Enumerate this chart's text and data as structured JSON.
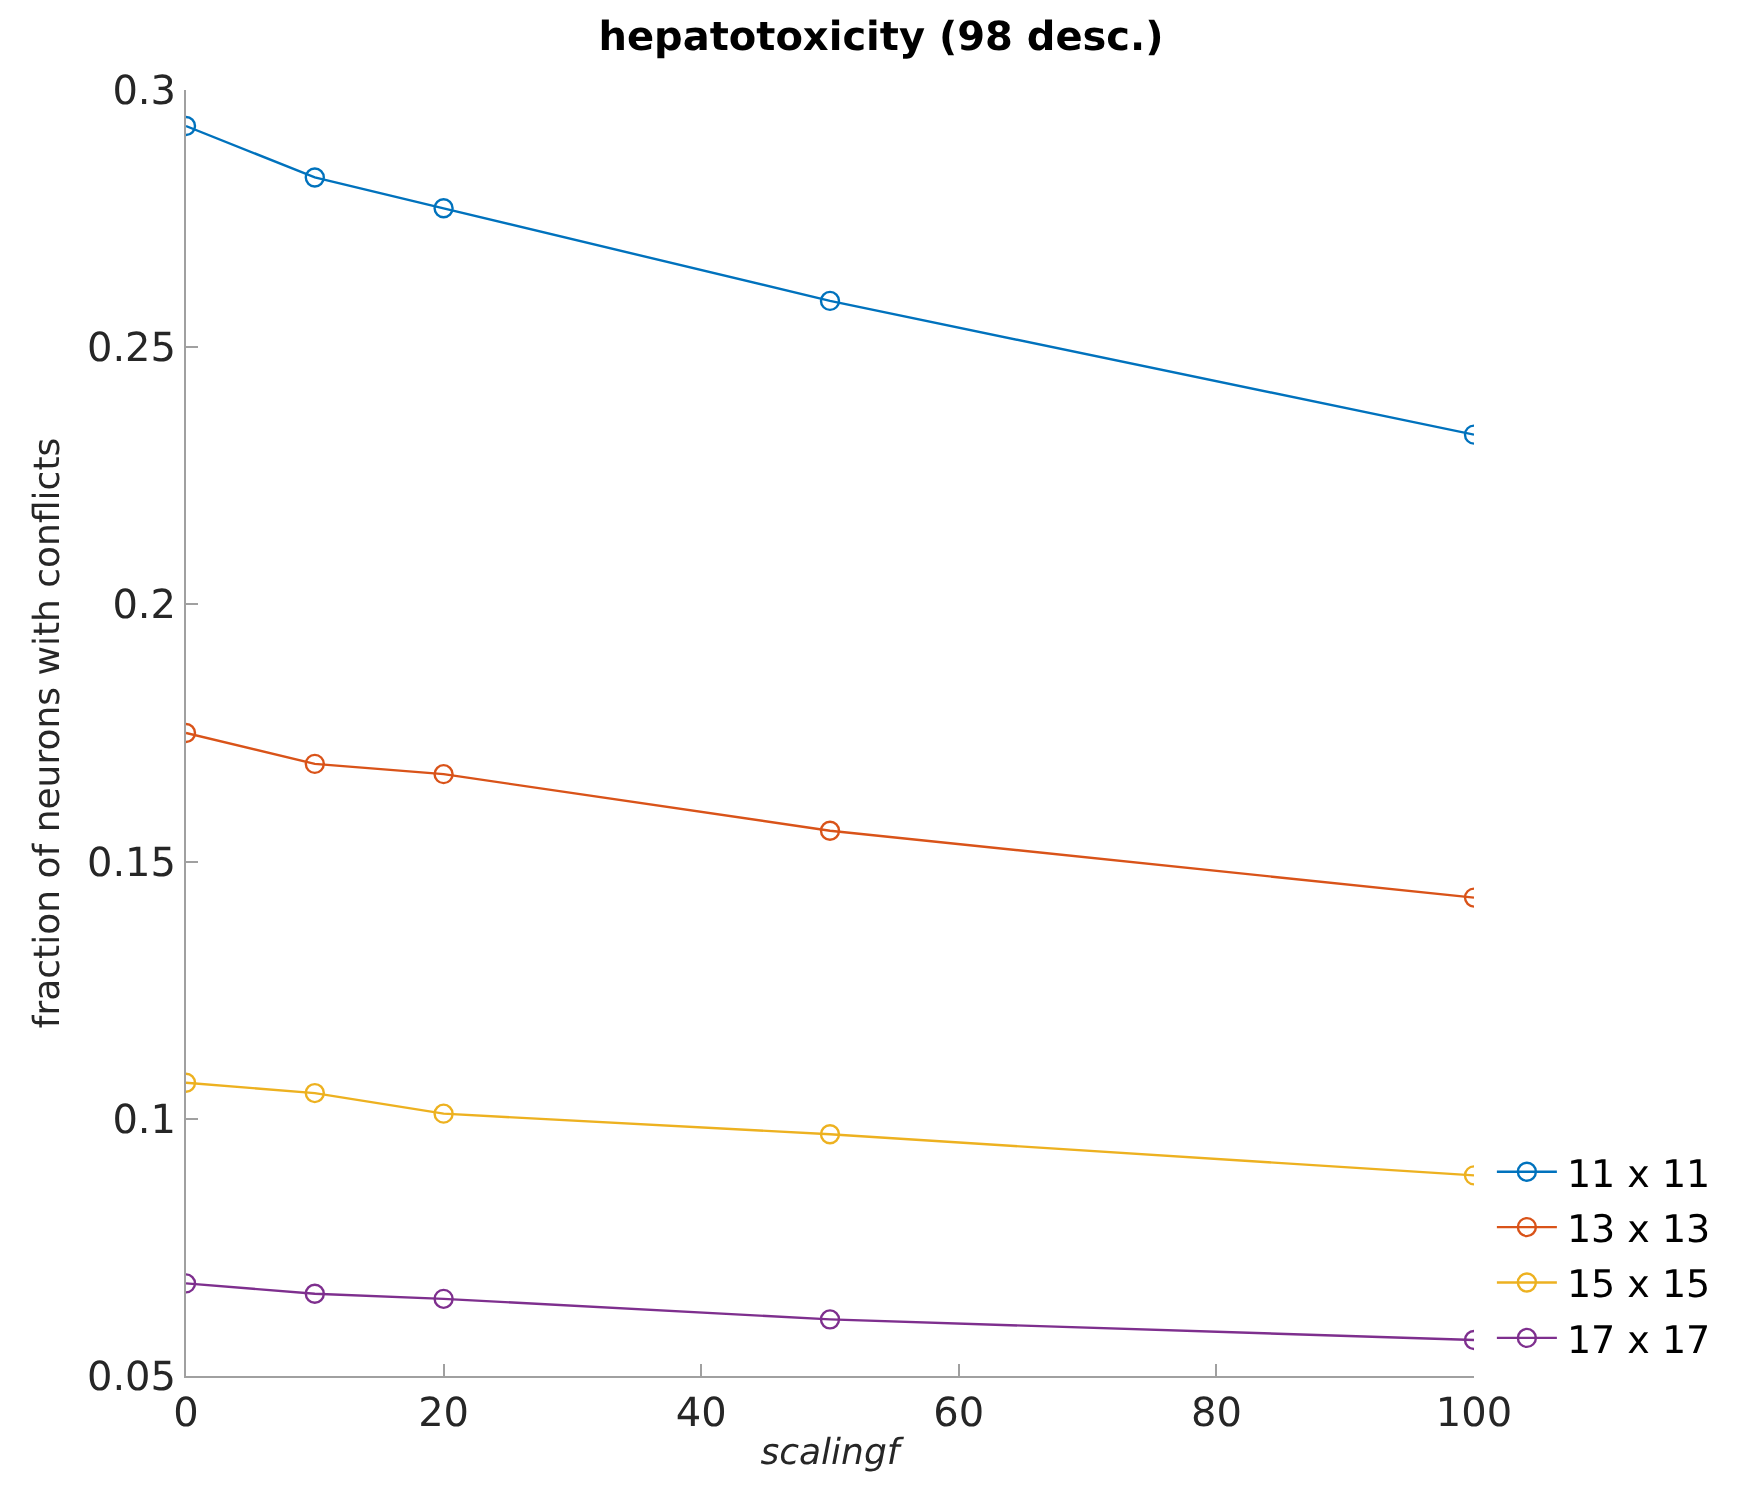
{
  "chart_data": {
    "type": "line",
    "title": "hepatotoxicity (98 desc.)",
    "xlabel": "scalingf",
    "ylabel": "fraction of neurons with conflicts",
    "x": [
      0,
      10,
      20,
      50,
      100
    ],
    "series": [
      {
        "name": "11 x 11",
        "color": "#0072bd",
        "values": [
          0.293,
          0.283,
          0.277,
          0.259,
          0.233
        ]
      },
      {
        "name": "13 x 13",
        "color": "#d95319",
        "values": [
          0.175,
          0.169,
          0.167,
          0.156,
          0.143
        ]
      },
      {
        "name": "15 x 15",
        "color": "#edb120",
        "values": [
          0.107,
          0.105,
          0.101,
          0.097,
          0.089
        ]
      },
      {
        "name": "17 x 17",
        "color": "#7e2f8e",
        "values": [
          0.068,
          0.066,
          0.065,
          0.061,
          0.057
        ]
      }
    ],
    "xlim": [
      0,
      100
    ],
    "xticks": [
      0,
      20,
      40,
      60,
      80,
      100
    ],
    "ylim": [
      0.05,
      0.3
    ],
    "yticks": [
      0.05,
      0.1,
      0.15,
      0.2,
      0.25,
      0.3
    ],
    "legend": "bottom right",
    "marker": "circle",
    "line_style": "solid"
  }
}
